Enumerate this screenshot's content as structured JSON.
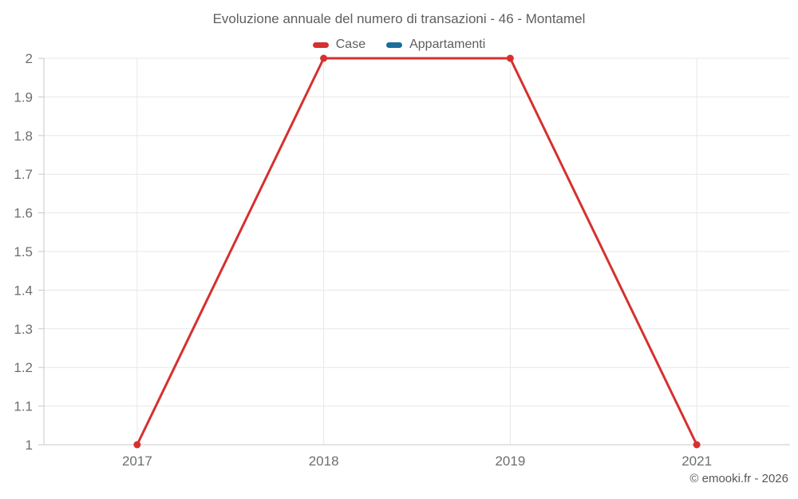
{
  "chart_data": {
    "type": "line",
    "title": "Evoluzione annuale del numero di transazioni - 46 - Montamel",
    "xlabel": "",
    "ylabel": "",
    "categories": [
      "2017",
      "2018",
      "2019",
      "2021"
    ],
    "series": [
      {
        "name": "Case",
        "color": "#d5312e",
        "values": [
          1,
          2,
          2,
          1
        ]
      },
      {
        "name": "Appartamenti",
        "color": "#1b6d9b",
        "values": [
          null,
          null,
          null,
          null
        ]
      }
    ],
    "ylim": [
      1,
      2
    ],
    "yticks": [
      {
        "v": 1,
        "label": "1"
      },
      {
        "v": 1.1,
        "label": "1.1"
      },
      {
        "v": 1.2,
        "label": "1.2"
      },
      {
        "v": 1.3,
        "label": "1.3"
      },
      {
        "v": 1.4,
        "label": "1.4"
      },
      {
        "v": 1.5,
        "label": "1.5"
      },
      {
        "v": 1.6,
        "label": "1.6"
      },
      {
        "v": 1.7,
        "label": "1.7"
      },
      {
        "v": 1.8,
        "label": "1.8"
      },
      {
        "v": 1.9,
        "label": "1.9"
      },
      {
        "v": 2,
        "label": "2"
      }
    ],
    "grid": true,
    "legend_position": "top",
    "colors": {
      "grid": "#e7e7e7",
      "axis": "#c9c9c9",
      "tick_text": "#6e6e6e"
    }
  },
  "footer": {
    "watermark": "© emooki.fr - 2026"
  }
}
